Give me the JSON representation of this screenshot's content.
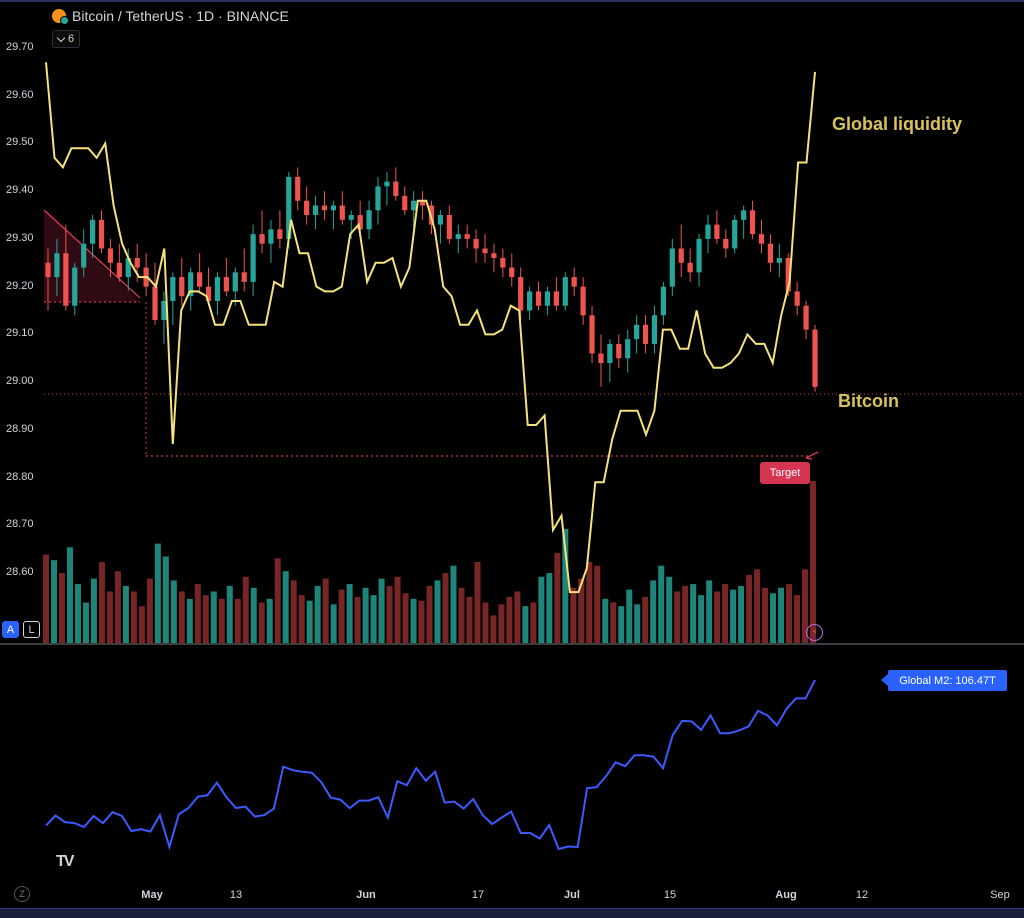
{
  "header": {
    "symbol_icon": "bitcoin-icon",
    "title": "Bitcoin / TetherUS · 1D · BINANCE"
  },
  "indicator_toggle": {
    "icon": "chevron-down-icon",
    "count": "6"
  },
  "annotations": {
    "global_liquidity": "Global liquidity",
    "bitcoin": "Bitcoin",
    "target": "Target"
  },
  "m2_badge": "Global M2: 106.47T",
  "scale_buttons": {
    "auto": "A",
    "log": "L"
  },
  "zoom_button": "Z",
  "logo": "TV",
  "colors": {
    "up": "#26a69a",
    "down": "#ef5350",
    "liquidity": "#f5e27a",
    "m2": "#3d5afe",
    "target": "#d63552",
    "annotation": "#d9c25c"
  },
  "chart_data": [
    {
      "type": "candlestick",
      "title": "Bitcoin / TetherUS · 1D · BINANCE",
      "y_axis": {
        "scale": "log",
        "ticks": [
          "29.70",
          "29.60",
          "29.50",
          "29.40",
          "29.30",
          "29.20",
          "29.10",
          "29.00",
          "28.90",
          "28.80",
          "28.70",
          "28.60"
        ],
        "range": [
          28.53,
          29.72
        ]
      },
      "x_axis": {
        "ticks": [
          "May",
          "13",
          "Jun",
          "17",
          "Jul",
          "15",
          "Aug",
          "12",
          "Sep"
        ],
        "bold": [
          "May",
          "Jun",
          "Jul",
          "Aug"
        ]
      },
      "candles": [
        [
          29.25,
          29.28,
          29.15,
          29.22
        ],
        [
          29.22,
          29.3,
          29.18,
          29.27
        ],
        [
          29.27,
          29.33,
          29.15,
          29.16
        ],
        [
          29.16,
          29.25,
          29.14,
          29.24
        ],
        [
          29.24,
          29.32,
          29.22,
          29.29
        ],
        [
          29.29,
          29.35,
          29.26,
          29.34
        ],
        [
          29.34,
          29.36,
          29.27,
          29.28
        ],
        [
          29.28,
          29.3,
          29.22,
          29.25
        ],
        [
          29.25,
          29.29,
          29.21,
          29.22
        ],
        [
          29.22,
          29.28,
          29.19,
          29.26
        ],
        [
          29.26,
          29.29,
          29.21,
          29.24
        ],
        [
          29.24,
          29.27,
          29.18,
          29.2
        ],
        [
          29.2,
          29.25,
          29.12,
          29.13
        ],
        [
          29.13,
          29.19,
          29.08,
          29.17
        ],
        [
          29.17,
          29.23,
          29.12,
          29.22
        ],
        [
          29.22,
          29.26,
          29.16,
          29.18
        ],
        [
          29.18,
          29.24,
          29.15,
          29.23
        ],
        [
          29.23,
          29.27,
          29.19,
          29.2
        ],
        [
          29.2,
          29.24,
          29.16,
          29.17
        ],
        [
          29.17,
          29.23,
          29.14,
          29.22
        ],
        [
          29.22,
          29.26,
          29.18,
          29.19
        ],
        [
          29.19,
          29.24,
          29.16,
          29.23
        ],
        [
          29.23,
          29.28,
          29.19,
          29.21
        ],
        [
          29.21,
          29.33,
          29.18,
          29.31
        ],
        [
          29.31,
          29.36,
          29.27,
          29.29
        ],
        [
          29.29,
          29.34,
          29.25,
          29.32
        ],
        [
          29.32,
          29.36,
          29.28,
          29.3
        ],
        [
          29.3,
          29.44,
          29.28,
          29.43
        ],
        [
          29.43,
          29.45,
          29.36,
          29.38
        ],
        [
          29.38,
          29.41,
          29.33,
          29.35
        ],
        [
          29.35,
          29.39,
          29.32,
          29.37
        ],
        [
          29.37,
          29.4,
          29.34,
          29.36
        ],
        [
          29.36,
          29.38,
          29.32,
          29.37
        ],
        [
          29.37,
          29.4,
          29.33,
          29.34
        ],
        [
          29.34,
          29.36,
          29.3,
          29.35
        ],
        [
          29.35,
          29.38,
          29.31,
          29.32
        ],
        [
          29.32,
          29.38,
          29.3,
          29.36
        ],
        [
          29.36,
          29.43,
          29.33,
          29.41
        ],
        [
          29.41,
          29.44,
          29.37,
          29.42
        ],
        [
          29.42,
          29.45,
          29.38,
          29.39
        ],
        [
          29.39,
          29.41,
          29.35,
          29.36
        ],
        [
          29.36,
          29.4,
          29.32,
          29.38
        ],
        [
          29.38,
          29.4,
          29.34,
          29.37
        ],
        [
          29.37,
          29.38,
          29.31,
          29.33
        ],
        [
          29.33,
          29.36,
          29.29,
          29.35
        ],
        [
          29.35,
          29.37,
          29.29,
          29.3
        ],
        [
          29.3,
          29.33,
          29.27,
          29.31
        ],
        [
          29.31,
          29.33,
          29.28,
          29.3
        ],
        [
          29.3,
          29.32,
          29.25,
          29.28
        ],
        [
          29.28,
          29.31,
          29.25,
          29.27
        ],
        [
          29.27,
          29.29,
          29.23,
          29.26
        ],
        [
          29.26,
          29.28,
          29.22,
          29.24
        ],
        [
          29.24,
          29.27,
          29.2,
          29.22
        ],
        [
          29.22,
          29.24,
          29.13,
          29.15
        ],
        [
          29.15,
          29.2,
          29.13,
          29.19
        ],
        [
          29.19,
          29.21,
          29.15,
          29.16
        ],
        [
          29.16,
          29.2,
          29.14,
          29.19
        ],
        [
          29.19,
          29.22,
          29.15,
          29.16
        ],
        [
          29.16,
          29.23,
          29.15,
          29.22
        ],
        [
          29.22,
          29.24,
          29.18,
          29.2
        ],
        [
          29.2,
          29.22,
          29.12,
          29.14
        ],
        [
          29.14,
          29.16,
          29.04,
          29.06
        ],
        [
          29.06,
          29.1,
          28.99,
          29.04
        ],
        [
          29.04,
          29.09,
          29.0,
          29.08
        ],
        [
          29.08,
          29.1,
          29.03,
          29.05
        ],
        [
          29.05,
          29.11,
          29.02,
          29.09
        ],
        [
          29.09,
          29.14,
          29.06,
          29.12
        ],
        [
          29.12,
          29.14,
          29.06,
          29.08
        ],
        [
          29.08,
          29.16,
          29.06,
          29.14
        ],
        [
          29.14,
          29.21,
          29.12,
          29.2
        ],
        [
          29.2,
          29.3,
          29.18,
          29.28
        ],
        [
          29.28,
          29.33,
          29.22,
          29.25
        ],
        [
          29.25,
          29.28,
          29.21,
          29.23
        ],
        [
          29.23,
          29.31,
          29.2,
          29.3
        ],
        [
          29.3,
          29.35,
          29.27,
          29.33
        ],
        [
          29.33,
          29.36,
          29.29,
          29.3
        ],
        [
          29.3,
          29.32,
          29.26,
          29.28
        ],
        [
          29.28,
          29.35,
          29.27,
          29.34
        ],
        [
          29.34,
          29.37,
          29.3,
          29.36
        ],
        [
          29.36,
          29.38,
          29.3,
          29.31
        ],
        [
          29.31,
          29.34,
          29.27,
          29.29
        ],
        [
          29.29,
          29.31,
          29.23,
          29.25
        ],
        [
          29.25,
          29.29,
          29.22,
          29.26
        ],
        [
          29.26,
          29.27,
          29.18,
          29.19
        ],
        [
          29.19,
          29.21,
          29.14,
          29.16
        ],
        [
          29.16,
          29.17,
          29.09,
          29.11
        ],
        [
          29.11,
          29.12,
          28.98,
          28.99
        ]
      ]
    },
    {
      "type": "line",
      "series": [
        {
          "name": "Global liquidity",
          "color": "#f5e27a",
          "values": [
            29.67,
            29.47,
            29.45,
            29.49,
            29.49,
            29.49,
            29.47,
            29.5,
            29.37,
            29.29,
            29.25,
            29.22,
            29.22,
            29.2,
            29.28,
            28.87,
            29.15,
            29.19,
            29.19,
            29.18,
            29.12,
            29.12,
            29.17,
            29.17,
            29.12,
            29.12,
            29.12,
            29.21,
            29.2,
            29.34,
            29.27,
            29.27,
            29.2,
            29.19,
            29.19,
            29.2,
            29.31,
            29.33,
            29.21,
            29.25,
            29.25,
            29.26,
            29.2,
            29.24,
            29.38,
            29.38,
            29.32,
            29.2,
            29.18,
            29.12,
            29.12,
            29.15,
            29.1,
            29.1,
            29.11,
            29.16,
            29.15,
            28.91,
            28.91,
            28.93,
            28.69,
            28.72,
            28.56,
            28.56,
            28.61,
            28.79,
            28.79,
            28.88,
            28.94,
            28.94,
            28.94,
            28.89,
            28.94,
            29.11,
            29.11,
            29.07,
            29.07,
            29.15,
            29.06,
            29.03,
            29.03,
            29.04,
            29.06,
            29.1,
            29.08,
            29.08,
            29.04,
            29.14,
            29.21,
            29.46,
            29.46,
            29.65
          ]
        },
        {
          "name": "Global M2: 106.47T",
          "color": "#3d5afe",
          "values": [
            103.55,
            103.75,
            103.62,
            103.6,
            103.52,
            103.74,
            103.6,
            103.82,
            103.74,
            103.44,
            103.48,
            103.43,
            103.76,
            103.12,
            103.78,
            103.9,
            104.13,
            104.16,
            104.41,
            104.12,
            103.9,
            103.93,
            103.73,
            103.76,
            103.89,
            104.73,
            104.66,
            104.63,
            104.61,
            104.42,
            104.11,
            104.07,
            103.9,
            104.05,
            104.05,
            104.12,
            103.71,
            104.44,
            104.36,
            104.7,
            104.45,
            104.63,
            104.01,
            104.03,
            103.89,
            104.08,
            103.76,
            103.58,
            103.71,
            103.83,
            103.4,
            103.4,
            103.29,
            103.56,
            103.08,
            103.13,
            103.12,
            104.3,
            104.32,
            104.54,
            104.82,
            104.74,
            104.96,
            104.96,
            104.93,
            104.7,
            105.36,
            105.65,
            105.64,
            105.47,
            105.76,
            105.4,
            105.4,
            105.46,
            105.54,
            105.85,
            105.76,
            105.56,
            105.89,
            106.1,
            106.1,
            106.47
          ]
        }
      ]
    },
    {
      "type": "bar",
      "title": "Volume",
      "values": [
        48,
        45,
        38,
        52,
        32,
        22,
        35,
        44,
        28,
        39,
        31,
        28,
        20,
        35,
        54,
        47,
        34,
        28,
        24,
        32,
        26,
        28,
        24,
        31,
        24,
        36,
        30,
        22,
        24,
        46,
        39,
        34,
        26,
        23,
        31,
        35,
        21,
        29,
        32,
        25,
        30,
        26,
        35,
        31,
        36,
        27,
        24,
        23,
        31,
        34,
        38,
        42,
        30,
        25,
        44,
        22,
        15,
        21,
        25,
        28,
        20,
        22,
        36,
        38,
        49,
        62,
        30,
        35,
        44,
        42,
        24,
        22,
        20,
        29,
        21,
        25,
        34,
        42,
        36,
        28,
        31,
        32,
        26,
        34,
        28,
        32,
        29,
        31,
        37,
        40,
        30,
        27,
        30,
        32,
        26,
        40,
        88
      ]
    }
  ]
}
